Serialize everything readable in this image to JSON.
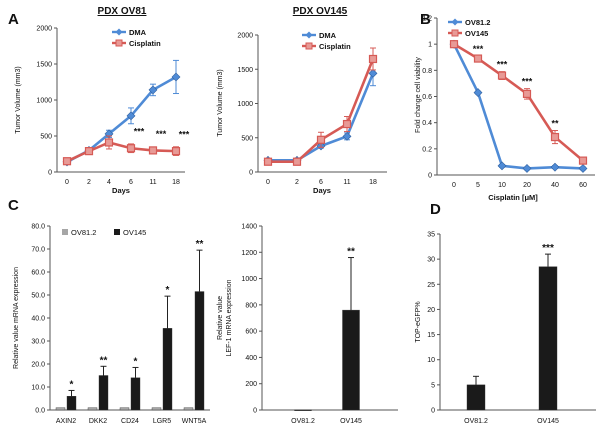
{
  "panels": [
    {
      "id": "p1",
      "letter": "A",
      "type": "line",
      "title": "PDX OV81",
      "xlabel": "Days",
      "ylabel": "Tumor Volume (mm3)",
      "categories": [
        "0",
        "2",
        "4",
        "6",
        "11",
        "18"
      ],
      "ylim": [
        0,
        2000
      ],
      "yticks": [
        "0",
        "500",
        "1000",
        "1500",
        "2000"
      ],
      "series": [
        {
          "name": "DMA",
          "color": "#4f8bd6",
          "marker": "diamond",
          "values": [
            140,
            300,
            530,
            780,
            1140,
            1320
          ],
          "errors": [
            20,
            35,
            50,
            110,
            80,
            230
          ]
        },
        {
          "name": "Cisplatin",
          "color": "#d65a55",
          "marker": "square",
          "values": [
            150,
            290,
            410,
            330,
            300,
            290
          ],
          "errors": [
            20,
            40,
            90,
            60,
            40,
            60
          ]
        }
      ],
      "annotations": [
        {
          "x": 3,
          "text": "***"
        },
        {
          "x": 4,
          "text": "***"
        },
        {
          "x": 5,
          "text": "***"
        }
      ]
    },
    {
      "id": "p2",
      "letter": "",
      "type": "line",
      "title": "PDX OV145",
      "xlabel": "Days",
      "ylabel": "Tumor Volume (mm3)",
      "categories": [
        "0",
        "2",
        "6",
        "11",
        "18"
      ],
      "ylim": [
        0,
        2000
      ],
      "yticks": [
        "0",
        "500",
        "1000",
        "1500",
        "2000"
      ],
      "series": [
        {
          "name": "DMA",
          "color": "#4f8bd6",
          "marker": "diamond",
          "values": [
            170,
            170,
            380,
            520,
            1440
          ],
          "errors": [
            20,
            30,
            30,
            50,
            180
          ]
        },
        {
          "name": "Cisplatin",
          "color": "#d65a55",
          "marker": "square",
          "values": [
            150,
            150,
            470,
            700,
            1650
          ],
          "errors": [
            30,
            50,
            110,
            110,
            160
          ]
        }
      ],
      "annotations": []
    },
    {
      "id": "p3",
      "letter": "B",
      "type": "line",
      "title": "",
      "xlabel": "Cisplatin [μM]",
      "ylabel": "Fold change cell viability",
      "categories": [
        "0",
        "5",
        "10",
        "20",
        "40",
        "60"
      ],
      "ylim": [
        0,
        1.2
      ],
      "yticks": [
        "0",
        "0.2",
        "0.4",
        "0.6",
        "0.8",
        "1",
        "1.2"
      ],
      "series": [
        {
          "name": "OV81.2",
          "color": "#4f8bd6",
          "marker": "diamond",
          "values": [
            1.0,
            0.63,
            0.07,
            0.05,
            0.06,
            0.05
          ],
          "errors": [
            0.01,
            0.01,
            0.01,
            0.01,
            0.01,
            0.01
          ]
        },
        {
          "name": "OV145",
          "color": "#d65a55",
          "marker": "square",
          "values": [
            1.0,
            0.89,
            0.76,
            0.62,
            0.29,
            0.11
          ],
          "errors": [
            0.01,
            0.02,
            0.03,
            0.04,
            0.05,
            0.02
          ]
        }
      ],
      "annotations": [
        {
          "x": 1,
          "text": "***"
        },
        {
          "x": 2,
          "text": "***"
        },
        {
          "x": 3,
          "text": "***"
        },
        {
          "x": 4,
          "text": "**"
        }
      ]
    },
    {
      "id": "p4",
      "letter": "C",
      "type": "bar",
      "title": "",
      "xlabel": "",
      "ylabel": "Relative value mRNA expression",
      "categories": [
        "AXIN2",
        "DKK2",
        "CD24",
        "LGR5",
        "WNT5A"
      ],
      "ylim": [
        0,
        80
      ],
      "yticks": [
        "0.0",
        "10.0",
        "20.0",
        "30.0",
        "40.0",
        "50.0",
        "60.0",
        "70.0",
        "80.0"
      ],
      "series": [
        {
          "name": "OV81.2",
          "color": "#a6a6a6",
          "values": [
            1,
            1,
            1,
            1,
            1
          ],
          "errors": [
            0,
            0,
            0,
            0,
            0
          ]
        },
        {
          "name": "OV145",
          "color": "#1a1a1a",
          "values": [
            6,
            15,
            14,
            35.5,
            51.5
          ],
          "errors": [
            2.5,
            4,
            4.5,
            14,
            18
          ]
        }
      ],
      "annotations": [
        {
          "x": 0,
          "text": "*"
        },
        {
          "x": 1,
          "text": "**"
        },
        {
          "x": 2,
          "text": "*"
        },
        {
          "x": 3,
          "text": "*"
        },
        {
          "x": 4,
          "text": "**"
        }
      ]
    },
    {
      "id": "p5",
      "letter": "",
      "type": "bar",
      "title": "",
      "xlabel": "",
      "ylabel": "Relative value LEF-1 mRNA expression",
      "ylabel_lines": [
        "Relative value",
        "LEF-1 mRNA expression"
      ],
      "categories": [
        "OV81.2",
        "OV145"
      ],
      "ylim": [
        0,
        1400
      ],
      "yticks": [
        "0",
        "200",
        "400",
        "600",
        "800",
        "1000",
        "1200",
        "1400"
      ],
      "series": [
        {
          "name": "",
          "color": "#1a1a1a",
          "values": [
            1,
            760
          ],
          "errors": [
            0,
            400
          ]
        }
      ],
      "annotations": [
        {
          "x": 1,
          "text": "**"
        }
      ]
    },
    {
      "id": "p6",
      "letter": "D",
      "type": "bar",
      "title": "",
      "xlabel": "",
      "ylabel": "TOP-eGFP%",
      "categories": [
        "OV81.2",
        "OV145"
      ],
      "ylim": [
        0,
        35
      ],
      "yticks": [
        "0",
        "5",
        "10",
        "15",
        "20",
        "25",
        "30",
        "35"
      ],
      "series": [
        {
          "name": "",
          "color": "#1a1a1a",
          "values": [
            5,
            28.5
          ],
          "errors": [
            1.7,
            2.5
          ]
        }
      ],
      "annotations": [
        {
          "x": 1,
          "text": "***"
        }
      ]
    }
  ]
}
